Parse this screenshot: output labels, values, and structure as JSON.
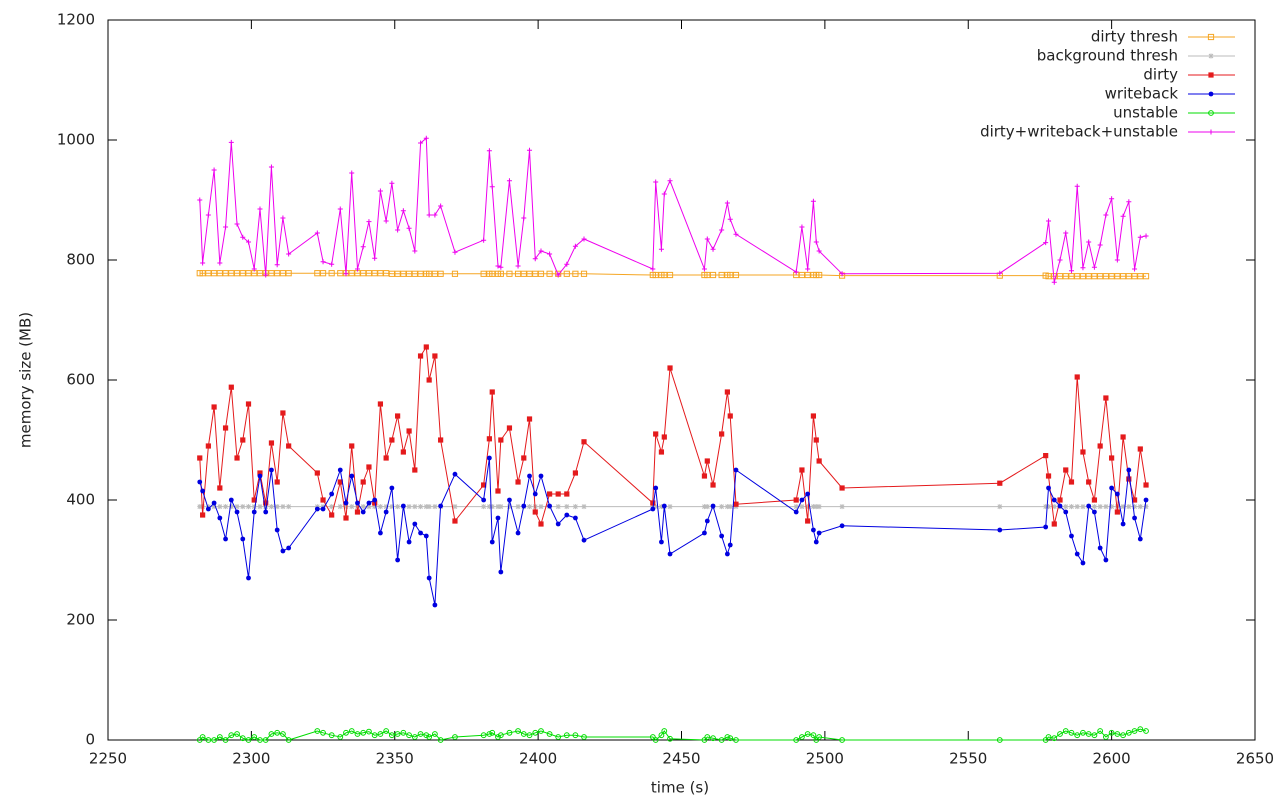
{
  "chart_data": {
    "type": "line",
    "xlabel": "time (s)",
    "ylabel": "memory size (MB)",
    "xlim": [
      2250,
      2650
    ],
    "xticks": [
      2250,
      2300,
      2350,
      2400,
      2450,
      2500,
      2550,
      2600,
      2650
    ],
    "ylim": [
      0,
      1200
    ],
    "yticks": [
      0,
      200,
      400,
      600,
      800,
      1000,
      1200
    ],
    "legend": "top-right",
    "x": [
      2282,
      2283,
      2285,
      2287,
      2289,
      2291,
      2293,
      2295,
      2297,
      2299,
      2301,
      2303,
      2305,
      2307,
      2309,
      2311,
      2313,
      2323,
      2325,
      2328,
      2331,
      2333,
      2335,
      2337,
      2339,
      2341,
      2343,
      2345,
      2347,
      2349,
      2351,
      2353,
      2355,
      2357,
      2359,
      2361,
      2362,
      2364,
      2366,
      2371,
      2381,
      2383,
      2384,
      2386,
      2387,
      2390,
      2393,
      2395,
      2397,
      2399,
      2401,
      2404,
      2407,
      2410,
      2413,
      2416,
      2440,
      2441,
      2443,
      2444,
      2446,
      2458,
      2459,
      2461,
      2464,
      2466,
      2467,
      2469,
      2490,
      2492,
      2494,
      2496,
      2497,
      2498,
      2506,
      2561,
      2577,
      2578,
      2580,
      2582,
      2584,
      2586,
      2588,
      2590,
      2592,
      2594,
      2596,
      2598,
      2600,
      2602,
      2604,
      2606,
      2608,
      2610,
      2612
    ],
    "series": [
      {
        "name": "dirty thresh",
        "color": "#f5a623",
        "marker": "open-square",
        "values": [
          778,
          778,
          778,
          778,
          778,
          778,
          778,
          778,
          778,
          778,
          778,
          778,
          778,
          778,
          778,
          778,
          778,
          778,
          778,
          778,
          778,
          778,
          778,
          778,
          778,
          778,
          778,
          778,
          778,
          777,
          777,
          777,
          777,
          777,
          777,
          777,
          777,
          777,
          777,
          777,
          777,
          777,
          777,
          777,
          777,
          777,
          777,
          777,
          777,
          777,
          777,
          777,
          777,
          777,
          777,
          777,
          775,
          775,
          775,
          775,
          775,
          775,
          775,
          775,
          775,
          775,
          775,
          775,
          775,
          775,
          775,
          775,
          775,
          775,
          774,
          774,
          774,
          773,
          773,
          773,
          773,
          773,
          773,
          773,
          773,
          773,
          773,
          773,
          773,
          773,
          773,
          773,
          773,
          773,
          773
        ]
      },
      {
        "name": "background thresh",
        "color": "#bbbbbb",
        "marker": "star",
        "values": [
          389,
          389,
          389,
          389,
          389,
          389,
          389,
          389,
          389,
          389,
          389,
          389,
          389,
          389,
          389,
          389,
          389,
          389,
          389,
          389,
          389,
          389,
          389,
          389,
          389,
          389,
          389,
          389,
          389,
          389,
          389,
          389,
          389,
          389,
          389,
          389,
          389,
          389,
          389,
          389,
          389,
          389,
          389,
          389,
          389,
          389,
          389,
          389,
          389,
          389,
          389,
          389,
          389,
          389,
          389,
          389,
          389,
          389,
          389,
          389,
          389,
          389,
          389,
          389,
          389,
          389,
          389,
          389,
          389,
          389,
          389,
          389,
          389,
          389,
          389,
          389,
          389,
          389,
          389,
          389,
          389,
          389,
          389,
          389,
          389,
          389,
          389,
          389,
          389,
          389,
          389,
          389,
          389,
          389,
          389
        ]
      },
      {
        "name": "dirty",
        "color": "#e41a1c",
        "marker": "square",
        "values": [
          470,
          375,
          490,
          555,
          420,
          520,
          588,
          470,
          500,
          560,
          400,
          445,
          395,
          495,
          430,
          545,
          490,
          445,
          400,
          375,
          430,
          370,
          490,
          380,
          430,
          455,
          395,
          560,
          470,
          500,
          540,
          480,
          515,
          450,
          640,
          655,
          600,
          640,
          500,
          365,
          425,
          502,
          580,
          415,
          500,
          520,
          430,
          470,
          535,
          380,
          360,
          410,
          410,
          410,
          445,
          497,
          395,
          510,
          480,
          505,
          620,
          440,
          465,
          425,
          510,
          580,
          540,
          393,
          400,
          450,
          365,
          540,
          500,
          465,
          420,
          428,
          474,
          440,
          360,
          400,
          450,
          430,
          605,
          480,
          430,
          400,
          490,
          570,
          470,
          380,
          505,
          435,
          400,
          485,
          425
        ]
      },
      {
        "name": "writeback",
        "color": "#0000e0",
        "marker": "circle",
        "values": [
          430,
          415,
          385,
          395,
          370,
          335,
          400,
          380,
          335,
          270,
          380,
          440,
          380,
          450,
          350,
          315,
          320,
          385,
          385,
          410,
          450,
          395,
          440,
          395,
          380,
          395,
          400,
          345,
          380,
          420,
          300,
          390,
          330,
          360,
          345,
          340,
          270,
          225,
          390,
          443,
          400,
          470,
          330,
          370,
          280,
          400,
          345,
          390,
          440,
          410,
          440,
          390,
          360,
          375,
          370,
          333,
          385,
          420,
          330,
          390,
          310,
          345,
          365,
          390,
          340,
          310,
          325,
          450,
          380,
          400,
          410,
          350,
          330,
          345,
          357,
          350,
          355,
          420,
          400,
          390,
          380,
          340,
          310,
          295,
          390,
          380,
          320,
          300,
          420,
          410,
          360,
          450,
          370,
          335,
          400
        ]
      },
      {
        "name": "unstable",
        "color": "#00dd00",
        "marker": "open-circle",
        "values": [
          0,
          5,
          0,
          0,
          5,
          0,
          8,
          10,
          3,
          0,
          5,
          0,
          0,
          10,
          12,
          10,
          0,
          15,
          12,
          8,
          5,
          12,
          15,
          10,
          12,
          14,
          8,
          10,
          15,
          8,
          10,
          12,
          8,
          5,
          10,
          8,
          5,
          10,
          0,
          5,
          8,
          10,
          12,
          5,
          8,
          12,
          15,
          10,
          8,
          12,
          15,
          10,
          5,
          8,
          8,
          5,
          5,
          0,
          8,
          15,
          2,
          0,
          5,
          3,
          0,
          5,
          3,
          0,
          0,
          5,
          10,
          8,
          0,
          5,
          0,
          0,
          0,
          5,
          3,
          10,
          15,
          12,
          8,
          12,
          10,
          8,
          15,
          5,
          12,
          10,
          8,
          12,
          15,
          18,
          15
        ]
      },
      {
        "name": "dirty+writeback+unstable",
        "color": "#ee00ee",
        "marker": "plus",
        "values": [
          900,
          795,
          875,
          950,
          795,
          855,
          996,
          860,
          838,
          830,
          785,
          885,
          775,
          955,
          792,
          870,
          810,
          845,
          797,
          793,
          885,
          777,
          945,
          785,
          822,
          864,
          803,
          915,
          865,
          928,
          850,
          882,
          853,
          815,
          995,
          1003,
          875,
          875,
          890,
          813,
          833,
          982,
          922,
          790,
          788,
          932,
          790,
          870,
          983,
          802,
          815,
          810,
          775,
          793,
          823,
          835,
          785,
          930,
          818,
          910,
          932,
          785,
          835,
          818,
          850,
          895,
          868,
          843,
          780,
          855,
          785,
          898,
          830,
          815,
          777,
          778,
          829,
          865,
          763,
          800,
          845,
          782,
          923,
          787,
          830,
          788,
          825,
          875,
          902,
          800,
          873,
          897,
          785,
          838,
          840
        ]
      }
    ]
  }
}
